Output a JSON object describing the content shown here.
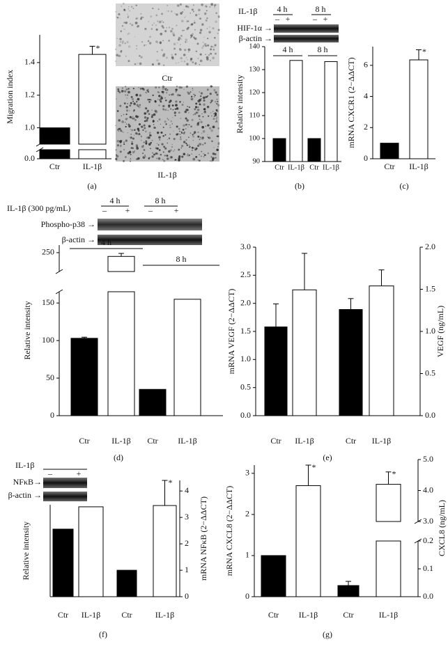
{
  "figure": {
    "panel_labels": [
      "(a)",
      "(b)",
      "(c)",
      "(d)",
      "(e)",
      "(f)",
      "(g)"
    ],
    "micrographs": [
      "Ctr",
      "IL-1β"
    ],
    "blot_b": {
      "treatment": "IL-1β",
      "times": [
        "4 h",
        "8 h"
      ],
      "lanes": [
        "–",
        "+",
        "–",
        "+"
      ],
      "bands": [
        "HIF-1α →",
        "β-actin →"
      ]
    },
    "blot_d": {
      "treatment": "IL-1β (300 pg/mL)",
      "times": [
        "4 h",
        "8 h"
      ],
      "lanes": [
        "–",
        "+",
        "–",
        "+"
      ],
      "bands": [
        "Phospho-p38 →",
        "β-actin →"
      ]
    },
    "blot_f": {
      "treatment": "IL-1β",
      "lanes": [
        "–",
        "+"
      ],
      "bands": [
        "NFκB→",
        "β-actin →"
      ]
    }
  },
  "chart_data": [
    {
      "type": "bar",
      "y_label": "Migration index",
      "categories": [
        "Ctr",
        "IL-1β"
      ],
      "colors": [
        "#000000",
        "#ffffff"
      ],
      "series": [
        {
          "values": [
            1.0,
            1.45
          ],
          "errors": [
            null,
            0.05
          ],
          "significance": [
            null,
            "*"
          ]
        }
      ],
      "ylim": [
        0,
        1.57
      ],
      "y_break": [
        0.05,
        0.9
      ],
      "yticks": [
        {
          "value": 0,
          "label": "0.0"
        },
        {
          "value": 1,
          "label": "1.0"
        },
        1.2,
        1.4
      ]
    },
    {
      "type": "bar",
      "y_label": "Relative intensity",
      "categories": [
        "Ctr",
        "IL-1β",
        "Ctr",
        "IL-1β"
      ],
      "groups": [
        "4 h",
        "8 h"
      ],
      "colors": [
        "#000000",
        "#ffffff",
        "#000000",
        "#ffffff"
      ],
      "series": [
        {
          "values": [
            100,
            134,
            100,
            133.5
          ]
        }
      ],
      "ylim": [
        90,
        140
      ],
      "yticks": [
        90,
        100,
        110,
        120,
        130,
        140
      ]
    },
    {
      "type": "bar",
      "y_label": "mRNA CXCR1 (2−ΔΔCT)",
      "categories": [
        "Ctr",
        "IL-1β"
      ],
      "colors": [
        "#000000",
        "#ffffff"
      ],
      "series": [
        {
          "values": [
            1.0,
            6.35
          ],
          "errors": [
            null,
            0.65
          ],
          "significance": [
            null,
            "*"
          ]
        }
      ],
      "ylim": [
        0,
        7.2
      ],
      "yticks": [
        0,
        2,
        4,
        6
      ]
    },
    {
      "type": "bar",
      "y_label": "Relative intensity",
      "categories": [
        "Ctr",
        "IL-1β",
        "Ctr",
        "IL-1β"
      ],
      "groups": [
        "4 h",
        "8 h"
      ],
      "colors": [
        "#000000",
        "#ffffff",
        "#000000",
        "#ffffff"
      ],
      "series": [
        {
          "values": [
            103,
            245,
            35,
            155
          ],
          "errors": [
            1.5,
            4,
            null,
            null
          ]
        }
      ],
      "ylim": [
        0,
        260
      ],
      "y_break": [
        165,
        225
      ],
      "yticks": [
        0,
        50,
        100,
        150,
        250
      ]
    },
    {
      "type": "bar",
      "y_label": "mRNA VEGF (2−ΔΔCT)",
      "y2_label": "VEGF (ng/mL)",
      "categories": [
        "Ctr",
        "IL-1β",
        "Ctr",
        "IL-1β"
      ],
      "colors": [
        "#000000",
        "#ffffff",
        "#000000",
        "#ffffff"
      ],
      "series": [
        {
          "values": [
            1.58,
            2.24,
            null,
            null
          ],
          "errors": [
            0.41,
            0.65,
            null,
            null
          ]
        },
        {
          "axis": "y2",
          "values": [
            null,
            null,
            1.26,
            1.54
          ],
          "errors": [
            null,
            null,
            0.13,
            0.19
          ]
        }
      ],
      "ylim": [
        0,
        3.0
      ],
      "yticks": [
        {
          "value": 0,
          "label": "0.0"
        },
        0.5,
        {
          "value": 1,
          "label": "1.0"
        },
        1.5,
        {
          "value": 2,
          "label": "2.0"
        },
        2.5,
        {
          "value": 3,
          "label": "3.0"
        }
      ],
      "y2lim": [
        0,
        2.0
      ],
      "y2ticks": [
        {
          "value": 0,
          "label": "0.0"
        },
        0.5,
        {
          "value": 1,
          "label": "1.0"
        },
        1.5,
        {
          "value": 2,
          "label": "2.0"
        }
      ]
    },
    {
      "type": "bar",
      "y_label": "Relative intensity",
      "categories": [
        "Ctr",
        "IL-1β"
      ],
      "colors": [
        "#000000",
        "#ffffff"
      ],
      "series": [
        {
          "values": [
            100,
            133
          ]
        }
      ],
      "ylim": [
        0,
        136
      ]
    },
    {
      "type": "bar",
      "y_label": "mRNA NFκB (2−ΔΔCT)",
      "y_axis_side": "right",
      "categories": [
        "Ctr",
        "IL-1β"
      ],
      "colors": [
        "#000000",
        "#ffffff"
      ],
      "series": [
        {
          "values": [
            1.0,
            3.45
          ],
          "errors": [
            null,
            0.95
          ],
          "significance": [
            null,
            "*"
          ]
        }
      ],
      "ylim": [
        0,
        4.4
      ],
      "yticks": [
        0,
        1,
        2,
        3,
        4
      ]
    },
    {
      "type": "bar",
      "y_label": "mRNA CXCL8 (2−ΔΔCT)",
      "categories": [
        "Ctr",
        "IL-1β"
      ],
      "colors": [
        "#000000",
        "#ffffff"
      ],
      "series": [
        {
          "values": [
            1.0,
            2.7
          ],
          "errors": [
            null,
            0.5
          ],
          "significance": [
            null,
            "*"
          ]
        }
      ],
      "ylim": [
        0,
        3.2
      ],
      "yticks": [
        0,
        1,
        2,
        3
      ]
    },
    {
      "type": "bar",
      "y_label": "CXCL8 (ng/mL)",
      "y_axis_side": "right",
      "categories": [
        "Ctr",
        "IL-1β"
      ],
      "colors": [
        "#000000",
        "#ffffff"
      ],
      "series": [
        {
          "values": [
            0.04,
            4.2
          ],
          "errors": [
            0.015,
            0.4
          ],
          "significance": [
            null,
            "*"
          ]
        }
      ],
      "ylim": [
        0,
        5.0
      ],
      "y_break": [
        0.2,
        3.0
      ],
      "yticks": [
        {
          "value": 0,
          "label": "0.0"
        },
        0.1,
        0.2,
        {
          "value": 3,
          "label": "3.0"
        },
        {
          "value": 4,
          "label": "4.0"
        },
        {
          "value": 5,
          "label": "5.0"
        }
      ]
    }
  ]
}
